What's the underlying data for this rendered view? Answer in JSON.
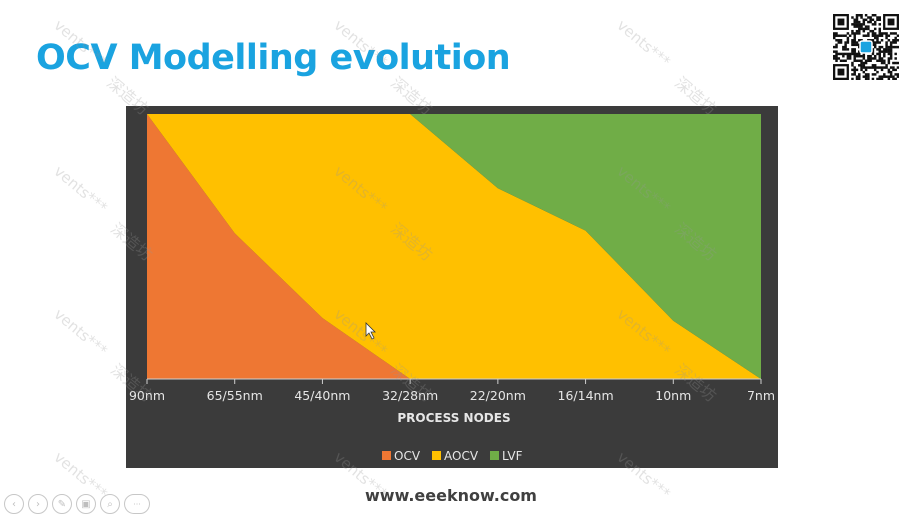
{
  "slide": {
    "title": "OCV Modelling evolution",
    "website": "www.eeeknow.com"
  },
  "watermarks": {
    "latin": "vents***",
    "cjk": "深造坊"
  },
  "toolbar": {
    "buttons": [
      {
        "icon": "prev-icon",
        "glyph": "‹"
      },
      {
        "icon": "next-icon",
        "glyph": "›"
      },
      {
        "icon": "pen-icon",
        "glyph": "✎"
      },
      {
        "icon": "slides-icon",
        "glyph": "▣"
      },
      {
        "icon": "zoom-icon",
        "glyph": "⌕"
      },
      {
        "icon": "more-icon",
        "glyph": "···"
      }
    ]
  },
  "colors": {
    "title": "#1aa3e0",
    "chart_background": "#3b3b3b",
    "OCV": "#ee7733",
    "AOCV": "#ffc000",
    "LVF": "#70ad47"
  },
  "chart_data": {
    "type": "area",
    "stacked": "percent",
    "title": "",
    "xlabel": "PROCESS NODES",
    "ylabel": "",
    "categories": [
      "90nm",
      "65/55nm",
      "45/40nm",
      "32/28nm",
      "22/20nm",
      "16/14nm",
      "10nm",
      "7nm"
    ],
    "series": [
      {
        "name": "OCV",
        "values": [
          100,
          55,
          23,
          0,
          0,
          0,
          0,
          0
        ]
      },
      {
        "name": "AOCV",
        "values": [
          0,
          45,
          77,
          100,
          72,
          56,
          22,
          0
        ]
      },
      {
        "name": "LVF",
        "values": [
          0,
          0,
          0,
          0,
          28,
          44,
          78,
          100
        ]
      }
    ],
    "ylim": [
      0,
      100
    ],
    "grid": false,
    "legend": "bottom"
  }
}
